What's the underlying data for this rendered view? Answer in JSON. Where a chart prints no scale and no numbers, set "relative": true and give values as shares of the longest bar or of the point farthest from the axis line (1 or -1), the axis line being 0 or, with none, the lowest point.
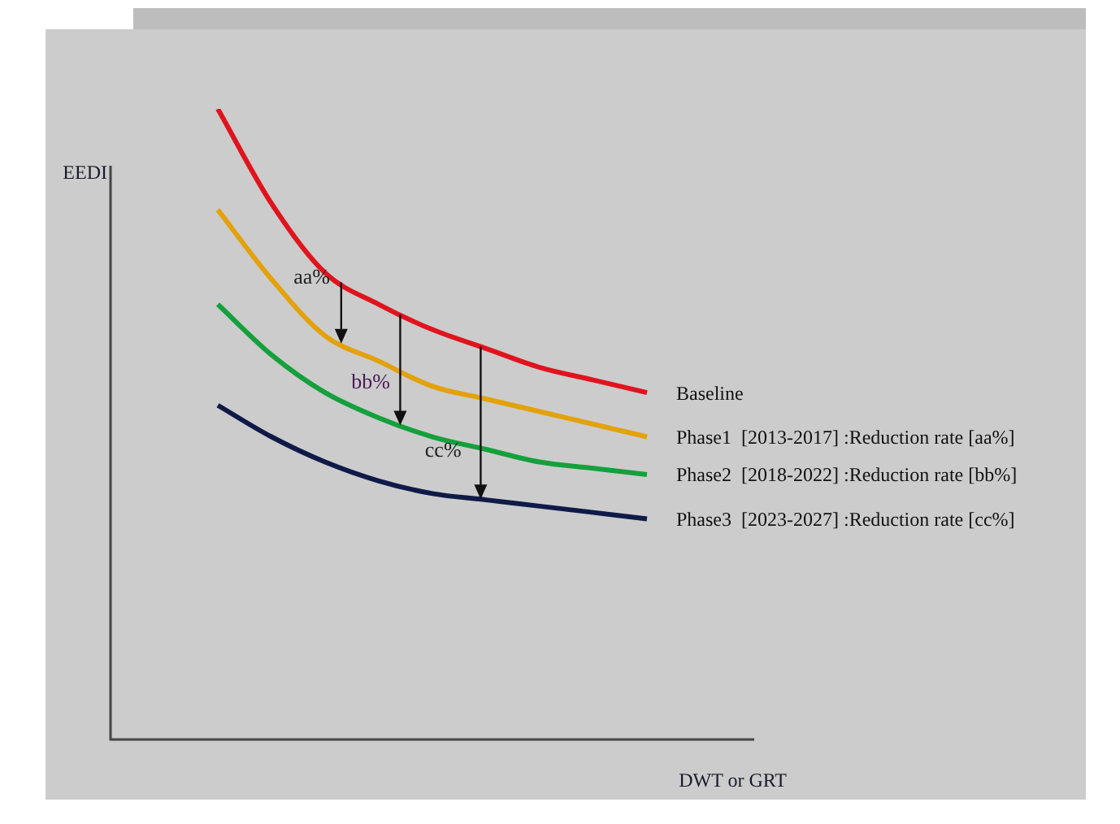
{
  "chart_data": {
    "type": "line",
    "relative": true,
    "xlabel": "DWT or GRT",
    "ylabel": "EEDI",
    "legend": false,
    "categories": [
      null,
      null,
      null,
      null,
      null,
      null,
      null,
      null,
      null,
      null,
      null,
      null,
      null
    ],
    "series": [
      {
        "name": "Baseline",
        "color": "#e0141e",
        "values": [
          null,
          null,
          1.0,
          0.85,
          0.74,
          0.69,
          0.65,
          0.62,
          0.59,
          0.57,
          0.55,
          null,
          null
        ]
      },
      {
        "name": "Phase1  [2013-2017] :Reduction rate [aa%]",
        "color": "#e3a10a",
        "values": [
          null,
          null,
          0.84,
          0.73,
          0.64,
          0.6,
          0.56,
          0.54,
          0.52,
          0.5,
          0.48,
          null,
          null
        ]
      },
      {
        "name": "Phase2  [2018-2022] :Reduction rate [bb%]",
        "color": "#14a03c",
        "values": [
          null,
          null,
          0.69,
          0.61,
          0.55,
          0.51,
          0.48,
          0.46,
          0.44,
          0.43,
          0.42,
          null,
          null
        ]
      },
      {
        "name": "Phase3  [2023-2027] :Reduction rate [cc%]",
        "color": "#101a48",
        "values": [
          null,
          null,
          0.53,
          0.48,
          0.44,
          0.41,
          0.39,
          0.38,
          0.37,
          0.36,
          0.35,
          null,
          null
        ]
      }
    ],
    "annotations": [
      "aa%",
      "bb%",
      "cc%"
    ]
  }
}
